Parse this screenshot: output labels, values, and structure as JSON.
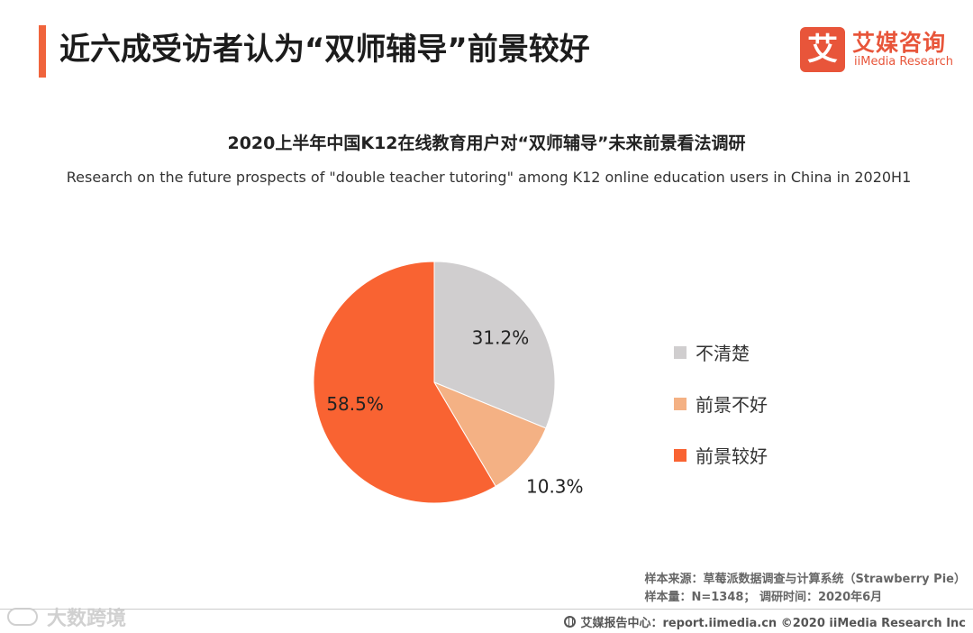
{
  "header": {
    "headline": "近六成受访者认为“双师辅导”前景较好",
    "accent_color": "#f0643c"
  },
  "logo": {
    "mark": "艾",
    "name_cn": "艾媒咨询",
    "name_en": "iiMedia Research",
    "color": "#e8553a"
  },
  "chart_data": {
    "type": "pie",
    "title": "2020上半年中国K12在线教育用户对“双师辅导”未来前景看法调研",
    "subtitle": "Research on the future prospects of \"double teacher tutoring\" among K12 online education users in China in 2020H1",
    "slices": [
      {
        "label": "不清楚",
        "value": 31.2,
        "display": "31.2%",
        "color": "#d0cecf"
      },
      {
        "label": "前景不好",
        "value": 10.3,
        "display": "10.3%",
        "color": "#f4b184"
      },
      {
        "label": "前景较好",
        "value": 58.5,
        "display": "58.5%",
        "color": "#f96332"
      }
    ],
    "start": "12 o'clock",
    "direction": "clockwise",
    "legend_position": "right"
  },
  "source": {
    "line1": "样本来源：草莓派数据调查与计算系统（Strawberry Pie）",
    "line2": "样本量：N=1348； 调研时间：2020年6月"
  },
  "footer": {
    "text": "艾媒报告中心：report.iimedia.cn  ©2020  iiMedia Research  Inc"
  },
  "watermark": {
    "text": "大数跨境"
  }
}
